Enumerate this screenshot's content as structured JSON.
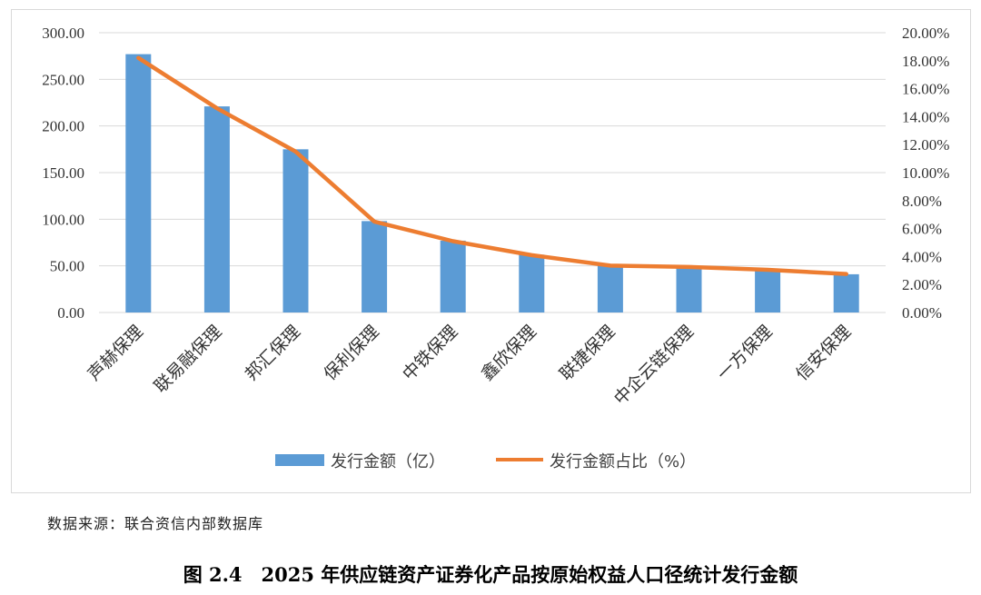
{
  "chart_data": {
    "type": "bar",
    "categories": [
      "声赫保理",
      "联易融保理",
      "邦汇保理",
      "保利保理",
      "中铁保理",
      "鑫欣保理",
      "联捷保理",
      "中企云链保理",
      "一方保理",
      "信安保理"
    ],
    "series": [
      {
        "name": "发行金额（亿）",
        "type": "bar",
        "axis": "left",
        "color": "#5b9bd5",
        "values": [
          277,
          221,
          175,
          98,
          77,
          62,
          51,
          50,
          47,
          41
        ]
      },
      {
        "name": "发行金额占比（%）",
        "type": "line",
        "axis": "right",
        "color": "#ed7d31",
        "values": [
          18.2,
          14.6,
          11.5,
          6.5,
          5.1,
          4.1,
          3.35,
          3.25,
          3.05,
          2.75
        ]
      }
    ],
    "y_left": {
      "range": [
        0,
        300
      ],
      "ticks": [
        "0.00",
        "50.00",
        "100.00",
        "150.00",
        "200.00",
        "250.00",
        "300.00"
      ]
    },
    "y_right": {
      "range": [
        0,
        20
      ],
      "ticks": [
        "0.00%",
        "2.00%",
        "4.00%",
        "6.00%",
        "8.00%",
        "10.00%",
        "12.00%",
        "14.00%",
        "16.00%",
        "18.00%",
        "20.00%"
      ]
    },
    "grid": true,
    "legend": "bottom"
  },
  "source_note": "数据来源：联合资信内部数据库",
  "caption": "图 2.4　2025 年供应链资产证券化产品按原始权益人口径统计发行金额"
}
